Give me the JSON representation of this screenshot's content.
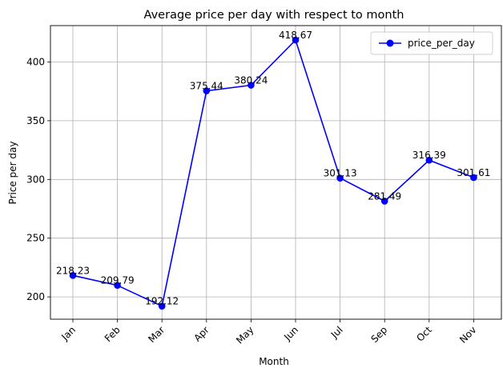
{
  "chart_data": {
    "type": "line",
    "title": "Average price per day with respect to month",
    "xlabel": "Month",
    "ylabel": "Price per day",
    "categories": [
      "Jan",
      "Feb",
      "Mar",
      "Apr",
      "May",
      "Jun",
      "Jul",
      "Sep",
      "Oct",
      "Nov"
    ],
    "series": [
      {
        "name": "price_per_day",
        "color": "#0000ff",
        "marker": "circle",
        "values": [
          218.23,
          209.79,
          192.12,
          375.44,
          380.24,
          418.67,
          301.13,
          281.49,
          316.39,
          301.61
        ]
      }
    ],
    "data_labels": [
      "218.23",
      "209.79",
      "192.12",
      "375.44",
      "380.24",
      "418.67",
      "301.13",
      "281.49",
      "316.39",
      "301.61"
    ],
    "ylim": [
      181.0,
      431.0
    ],
    "yticks": [
      200,
      250,
      300,
      350,
      400
    ],
    "x_tick_rotation": 45,
    "grid": true,
    "legend": {
      "placement": "top-right",
      "entries": [
        "price_per_day"
      ]
    }
  }
}
